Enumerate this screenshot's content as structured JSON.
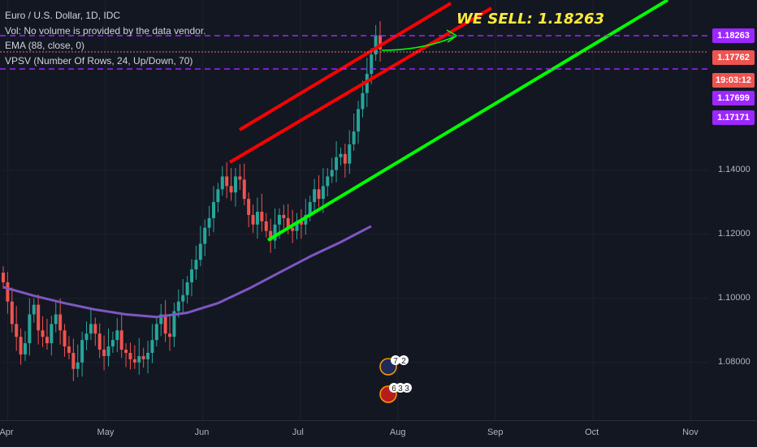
{
  "legend": {
    "title": "Euro / U.S. Dollar, 1D, IDC",
    "vol": "Vol: No volume is provided by the data vendor.",
    "ema": "EMA (88, close, 0)",
    "vpsv": "VPSV (Number Of Rows, 24, Up/Down, 70)"
  },
  "annotation": "WE SELL: 1.18263",
  "price_labels": {
    "sell": "1.18263",
    "last": "1.17762",
    "countdown": "19:03:12",
    "level2": "1.17699",
    "level3": "1.17171"
  },
  "event_badges": [
    "7",
    "2",
    "6",
    "3",
    "3"
  ],
  "colors": {
    "background": "#131722",
    "candle_up": "#26a69a",
    "candle_down": "#ef5350",
    "ema": "#7e57c2",
    "resistance": "#ff0000",
    "support": "#00ff00",
    "level_line": "#9c27ff",
    "annotation": "#ffeb3b"
  },
  "chart_data": {
    "type": "candlestick",
    "title": "Euro / U.S. Dollar, 1D, IDC",
    "y_ticks": [
      1.08,
      1.1,
      1.12,
      1.14
    ],
    "y_tick_labels": [
      "1.08000",
      "1.10000",
      "1.12000",
      "1.14000"
    ],
    "x_tick_labels": [
      "Apr",
      "May",
      "Jun",
      "Jul",
      "Aug",
      "Sep",
      "Oct",
      "Nov"
    ],
    "ylim": [
      1.062,
      1.193
    ],
    "levels": [
      1.18263,
      1.17762,
      1.17171
    ],
    "series": [
      {
        "name": "EMA (88, close, 0)",
        "values": [
          1.1035,
          1.1008,
          1.0985,
          1.0965,
          1.095,
          1.0942,
          1.0955,
          1.0985,
          1.103,
          1.108,
          1.113,
          1.1175,
          1.1225
        ]
      }
    ],
    "candles_close": [
      1.105,
      1.099,
      1.092,
      1.088,
      1.0825,
      1.086,
      1.095,
      1.098,
      1.09,
      1.088,
      1.086,
      1.092,
      1.095,
      1.09,
      1.085,
      1.083,
      1.078,
      1.08,
      1.087,
      1.089,
      1.092,
      1.089,
      1.084,
      1.082,
      1.085,
      1.087,
      1.09,
      1.084,
      1.083,
      1.081,
      1.08,
      1.082,
      1.081,
      1.083,
      1.087,
      1.092,
      1.095,
      1.089,
      1.088,
      1.096,
      1.099,
      1.101,
      1.105,
      1.109,
      1.112,
      1.117,
      1.122,
      1.125,
      1.13,
      1.134,
      1.138,
      1.135,
      1.133,
      1.138,
      1.137,
      1.131,
      1.126,
      1.123,
      1.127,
      1.124,
      1.121,
      1.118,
      1.123,
      1.126,
      1.125,
      1.122,
      1.121,
      1.124,
      1.123,
      1.126,
      1.13,
      1.134,
      1.131,
      1.135,
      1.138,
      1.14,
      1.144,
      1.145,
      1.142,
      1.148,
      1.152,
      1.159,
      1.164,
      1.17,
      1.176,
      1.182,
      1.1776
    ],
    "x_ticks_index": [
      1,
      23,
      45,
      67,
      89,
      111,
      133,
      155
    ]
  }
}
